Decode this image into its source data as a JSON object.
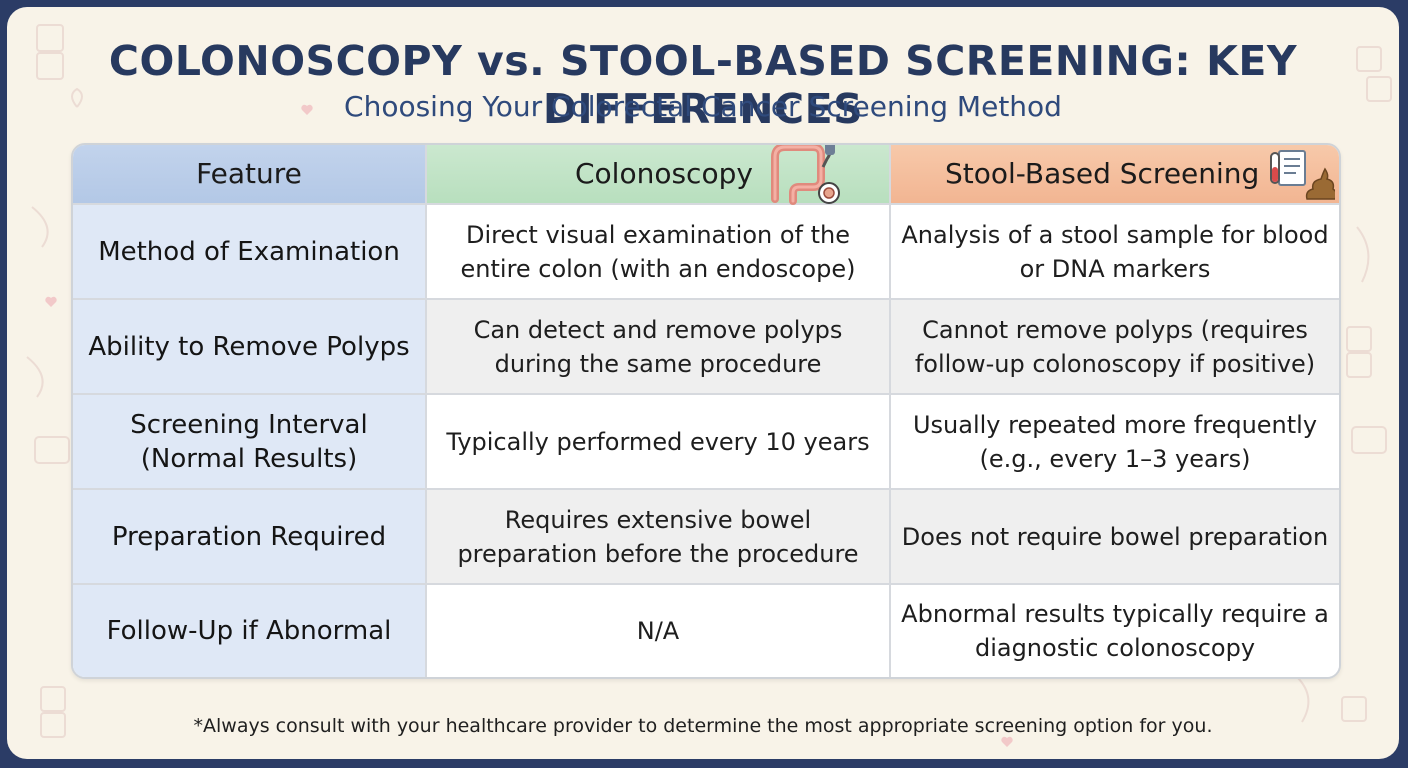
{
  "header": {
    "title": "COLONOSCOPY vs. STOOL-BASED SCREENING: KEY DIFFERENCES",
    "subtitle": "Choosing Your Colorectal Cancer Screening Method"
  },
  "table": {
    "columns": [
      {
        "label": "Feature",
        "icon": ""
      },
      {
        "label": "Colonoscopy",
        "icon": "colon-endoscope-icon"
      },
      {
        "label": "Stool-Based Screening",
        "icon": "test-tube-clipboard-stool-icon"
      }
    ],
    "rows": [
      {
        "feature": "Method of Examination",
        "colonoscopy": "Direct visual examination of the entire colon (with an endoscope)",
        "stool": "Analysis of a stool sample for blood or DNA markers"
      },
      {
        "feature": "Ability to Remove Polyps",
        "colonoscopy": "Can detect and remove polyps during the same procedure",
        "stool": "Cannot remove polyps (requires follow-up colonoscopy if positive)"
      },
      {
        "feature": "Screening Interval (Normal Results)",
        "colonoscopy": "Typically performed every 10 years",
        "stool": "Usually repeated more frequently (e.g., every 1–3 years)"
      },
      {
        "feature": "Preparation Required",
        "colonoscopy": "Requires extensive bowel preparation before the procedure",
        "stool": "Does not require bowel preparation"
      },
      {
        "feature": "Follow-Up if Abnormal",
        "colonoscopy": "N/A",
        "stool": "Abnormal results typically require a diagnostic colonoscopy"
      }
    ]
  },
  "footnote": "*Always consult with your healthcare provider to determine the most appropriate screening option for you.",
  "colors": {
    "frame": "#2b3c66",
    "background": "#f8f3e8",
    "title": "#27395f",
    "feature_header": "#b3c8e6",
    "colonoscopy_header": "#b8dfbe",
    "stool_header": "#f2b592"
  }
}
